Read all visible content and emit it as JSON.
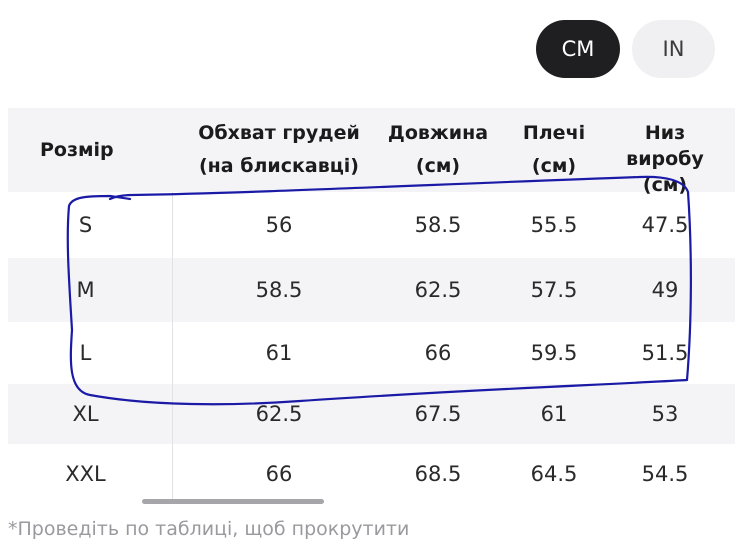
{
  "unit_toggle": {
    "cm_label": "CM",
    "in_label": "IN",
    "selected": "CM"
  },
  "table": {
    "headers": [
      "Розмір",
      "Обхват грудей\n(на блискавці)",
      "Довжина\n(см)",
      "Плечі\n(см)",
      "Низ\nвиробу\n(см)"
    ],
    "rows": [
      [
        "S",
        "56",
        "58.5",
        "55.5",
        "47.5"
      ],
      [
        "M",
        "58.5",
        "62.5",
        "57.5",
        "49"
      ],
      [
        "L",
        "61",
        "66",
        "59.5",
        "51.5"
      ],
      [
        "XL",
        "62.5",
        "67.5",
        "61",
        "53"
      ],
      [
        "XXL",
        "66",
        "68.5",
        "64.5",
        "54.5"
      ]
    ]
  },
  "scroll_hint": "*Проведіть по таблиці, щоб прокрутити",
  "colors": {
    "active_button": "#1f1f22",
    "inactive_button": "#f0f0f2",
    "row_shade": "#f4f4f7",
    "annotation_stroke": "#1a1aa6"
  }
}
